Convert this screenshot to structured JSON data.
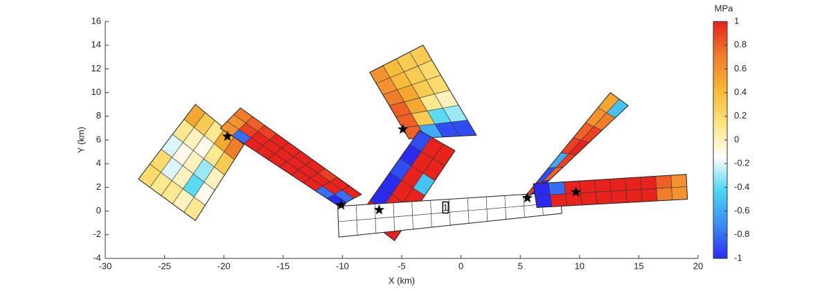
{
  "chart_data": {
    "type": "fault-patches",
    "xlabel": "X (km)",
    "ylabel": "Y (km)",
    "xlim": [
      -30,
      20
    ],
    "ylim": [
      -4,
      16
    ],
    "xticks": [
      -30,
      -25,
      -20,
      -15,
      -10,
      -5,
      0,
      5,
      10,
      15,
      20
    ],
    "yticks": [
      -4,
      -2,
      0,
      2,
      4,
      6,
      8,
      10,
      12,
      14,
      16
    ],
    "colormap": [
      "#2b2bf0",
      "#3a8cf5",
      "#49d6f2",
      "#ffffff",
      "#fbe47a",
      "#f7b733",
      "#f07a2a",
      "#e8221d"
    ],
    "colorbar": {
      "label": "MPa",
      "lim": [
        -1,
        1
      ],
      "ticks": [
        -1,
        -0.8,
        -0.6,
        -0.4,
        -0.2,
        0,
        0.2,
        0.4,
        0.6,
        0.8,
        1
      ]
    },
    "faults": [
      {
        "corners": [
          [
            -22.4,
            9.0
          ],
          [
            -18.3,
            5.6
          ],
          [
            -22.4,
            -0.8
          ],
          [
            -27.2,
            2.7
          ]
        ],
        "values": [
          [
            0.5,
            0.3,
            0.1,
            0.5,
            0.7
          ],
          [
            0.1,
            0,
            -0.1,
            0.1,
            0.3
          ],
          [
            -0.2,
            -0.1,
            0,
            -0.3,
            0
          ],
          [
            0.2,
            -0.2,
            0,
            -0.4,
            -0.1
          ],
          [
            0.2,
            0.1,
            0.1,
            0,
            0.1
          ]
        ]
      },
      {
        "corners": [
          [
            -18.6,
            8.7
          ],
          [
            -8.4,
            1.4
          ],
          [
            -10.3,
            0.4
          ],
          [
            -20.3,
            7.0
          ]
        ],
        "values": [
          [
            0.7,
            0.8,
            0.9,
            1,
            1,
            1,
            1,
            0.9,
            1,
            1
          ],
          [
            0.6,
            0.9,
            1,
            1,
            1,
            1,
            1,
            1,
            1,
            -0.8
          ],
          [
            0.6,
            -0.8,
            1,
            1,
            1,
            1,
            1,
            1,
            -0.8,
            -1
          ]
        ]
      },
      {
        "corners": [
          [
            -7.7,
            11.7
          ],
          [
            -3.2,
            14.0
          ],
          [
            1.3,
            6.4
          ],
          [
            -4.4,
            6.1
          ]
        ],
        "values": [
          [
            0.6,
            0.4,
            0.3,
            0.3
          ],
          [
            0.6,
            0.4,
            0.3,
            0.2
          ],
          [
            0.7,
            0.5,
            0.3,
            0.2
          ],
          [
            0.8,
            0.5,
            0.1,
            0
          ],
          [
            0.8,
            0.3,
            -0.4,
            -0.3
          ],
          [
            0.8,
            -0.6,
            -0.9,
            -0.9
          ]
        ]
      },
      {
        "corners": [
          [
            -3.5,
            6.8
          ],
          [
            -0.5,
            5.1
          ],
          [
            -5.6,
            -2.5
          ],
          [
            -8.5,
            -0.3
          ]
        ],
        "values": [
          [
            -0.9,
            1,
            1
          ],
          [
            -1,
            1,
            1
          ],
          [
            -0.9,
            1,
            -0.5
          ],
          [
            -1,
            1,
            1
          ],
          [
            -1,
            1,
            -1
          ],
          [
            1,
            -1,
            1
          ]
        ]
      },
      {
        "corners": [
          [
            -10.4,
            0.4
          ],
          [
            8.4,
            1.6
          ],
          [
            8.5,
            -0.2
          ],
          [
            -10.3,
            -2.2
          ]
        ],
        "values": [
          [
            null,
            null,
            null,
            null,
            null,
            null,
            null,
            null,
            null,
            null,
            null,
            null
          ],
          [
            null,
            null,
            null,
            null,
            null,
            null,
            null,
            null,
            null,
            null,
            null,
            null
          ]
        ]
      },
      {
        "corners": [
          [
            12.6,
            10.0
          ],
          [
            14.1,
            8.9
          ],
          [
            6.4,
            1.6
          ],
          [
            5.3,
            1.1
          ]
        ],
        "values": [
          [
            0.5,
            -0.5
          ],
          [
            0.6,
            0.7
          ],
          [
            0.8,
            0.9
          ],
          [
            0.9,
            1
          ],
          [
            -0.6,
            0.9
          ],
          [
            -0.9,
            0.8
          ],
          [
            0.9,
            -1
          ]
        ]
      },
      {
        "corners": [
          [
            6.1,
            2.3
          ],
          [
            19.0,
            3.1
          ],
          [
            19.1,
            1.0
          ],
          [
            6.4,
            0.3
          ]
        ],
        "values": [
          [
            -1,
            -0.8,
            1,
            1,
            1,
            1,
            1,
            1,
            0.8,
            0.6
          ],
          [
            -1,
            1,
            1,
            1,
            1,
            1,
            1,
            1,
            0.7,
            0.6
          ]
        ]
      }
    ],
    "stars": {
      "x": [
        -19.7,
        -4.9,
        -10.1,
        -6.9,
        5.6,
        9.7
      ],
      "y": [
        6.3,
        6.9,
        0.5,
        0.1,
        1.1,
        1.6
      ]
    },
    "annotation": {
      "text": "1",
      "x": -1.3,
      "y": 0.3
    }
  }
}
